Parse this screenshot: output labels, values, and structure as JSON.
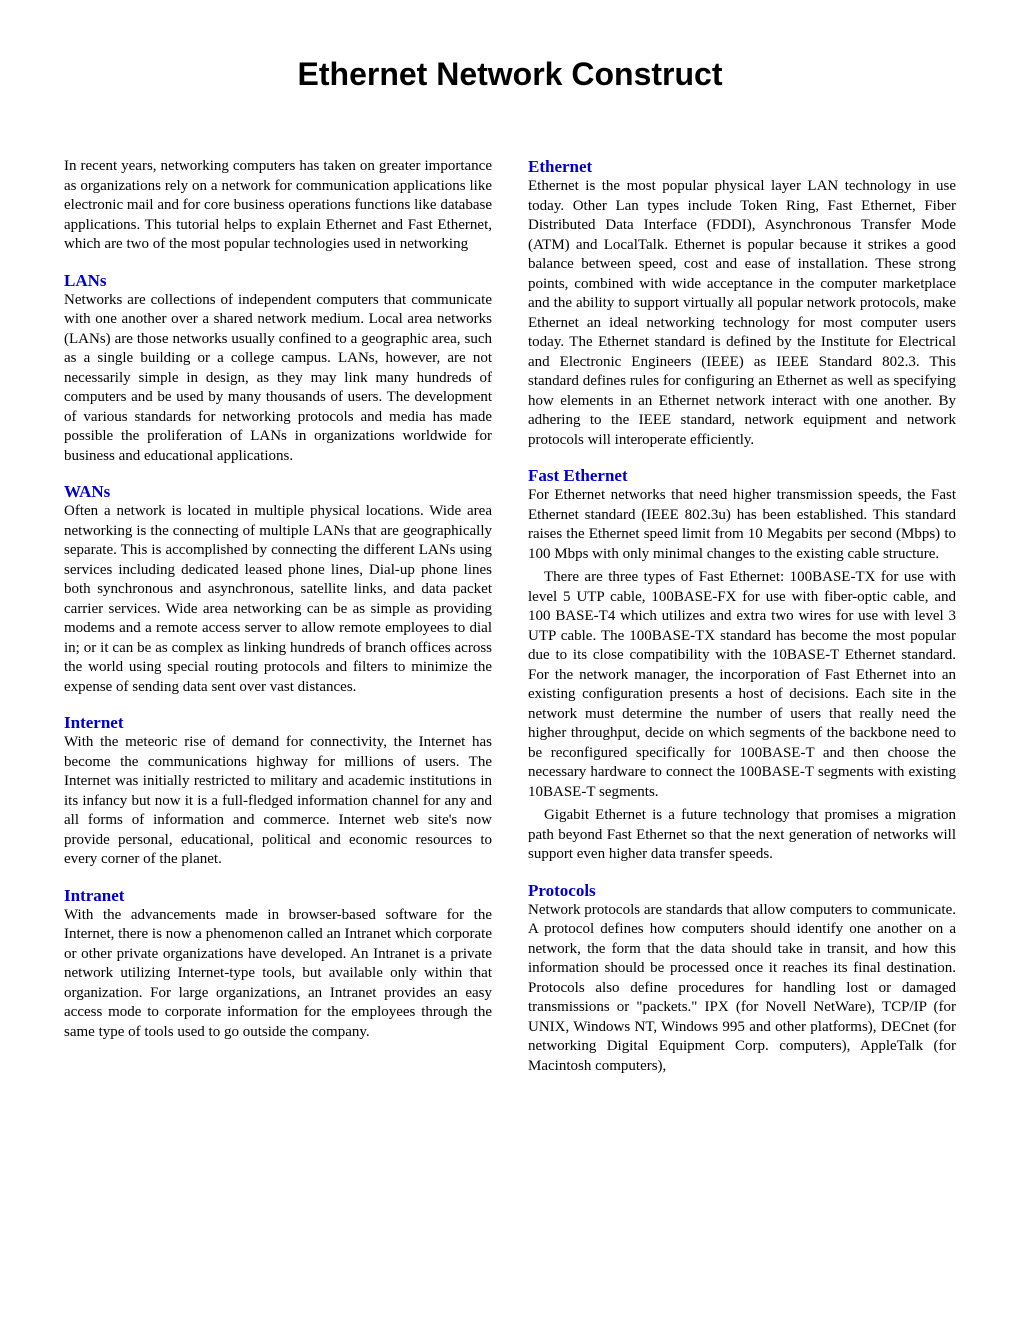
{
  "title": "Ethernet Network Construct",
  "left": {
    "intro": "In recent years, networking computers has taken on greater importance as organizations rely on a network for communication applications like electronic mail and for core business operations functions like database applications. This tutorial helps to explain Ethernet and Fast Ethernet, which are two of the most popular technologies used in networking",
    "sections": [
      {
        "heading": "LANs",
        "body": "Networks are collections of independent computers that communicate with one another over a shared network medium.  Local area networks (LANs) are those networks usually confined to a geographic area, such as a single building or a college campus.  LANs, however, are not necessarily simple in design, as they may link many hundreds of computers and be used by many thousands of users.  The development of various standards for networking protocols and media has made possible the proliferation of LANs in organizations worldwide for business and educational applications."
      },
      {
        "heading": "WANs",
        "body": "Often a network is located in multiple physical locations. Wide area networking is the connecting of multiple LANs that are geographically separate.  This is accomplished by connecting the different LANs using services including dedicated leased phone lines, Dial-up phone lines both synchronous and asynchronous, satellite links, and data packet carrier services.  Wide area networking can be as simple as providing modems and a remote access server to allow remote employees to dial in; or it can be as complex as linking hundreds of branch offices across the world using special routing protocols and filters to minimize the expense of sending data sent over vast distances."
      },
      {
        "heading": "Internet",
        "body": "With the meteoric rise of demand for connectivity, the Internet has become the communications highway for millions of users.  The Internet was initially restricted to military and academic institutions in its infancy but now it is a full-fledged information channel for any and all forms of information and commerce.  Internet web site's now provide personal, educational, political and economic resources to every corner of the planet."
      },
      {
        "heading": "Intranet",
        "body": "With the advancements made in browser-based software for the Internet, there is now a phenomenon called an Intranet which corporate or other private organizations have developed.  An Intranet is a private network utilizing Internet-type tools, but available only within that organization.  For large organizations, an Intranet provides an easy access mode to corporate information for the employees through the same type of tools used to go outside the company."
      }
    ]
  },
  "right": {
    "sections": [
      {
        "heading": "Ethernet",
        "body": "Ethernet is the most popular physical layer LAN technology in use today.  Other Lan types include Token Ring, Fast Ethernet, Fiber Distributed Data Interface (FDDI), Asynchronous Transfer Mode (ATM) and LocalTalk. Ethernet is popular because it strikes a good balance between speed, cost and ease of installation.  These strong points, combined with wide acceptance in the computer marketplace and the ability to support virtually all popular network protocols, make Ethernet an ideal networking technology for most computer users today.  The Ethernet standard is defined by the Institute for Electrical and Electronic Engineers (IEEE) as IEEE Standard 802.3.  This standard defines rules for configuring an Ethernet as well as specifying how elements in an Ethernet network interact with one another.  By adhering to the IEEE standard, network equipment and network protocols will interoperate efficiently."
      },
      {
        "heading": "Fast Ethernet",
        "body": "For Ethernet networks that need higher transmission speeds, the Fast Ethernet standard (IEEE 802.3u) has been established.  This standard raises the Ethernet speed limit from 10 Megabits per second (Mbps) to 100 Mbps with only minimal changes to the existing cable structure.",
        "body2": "There are three types of Fast Ethernet: 100BASE-TX for use with level 5 UTP cable, 100BASE-FX for use with fiber-optic cable, and 100 BASE-T4 which utilizes and extra two wires for use with level 3 UTP cable.  The 100BASE-TX standard has become the most popular due to its close compatibility with the 10BASE-T Ethernet standard.  For the network manager, the incorporation of Fast Ethernet into an existing configuration presents a host of decisions.  Each site in the network must determine the number of users that really need the higher throughput, decide on which segments of the backbone need to be reconfigured specifically for 100BASE-T and then choose the necessary hardware to connect the 100BASE-T segments with existing 10BASE-T segments.",
        "body3": "Gigabit Ethernet is a future technology that promises a migration path beyond Fast Ethernet so that the next generation of networks will support even higher data transfer speeds."
      },
      {
        "heading": "Protocols",
        "body": "Network protocols are standards that allow computers to communicate.  A protocol defines how computers should identify one another on a network, the form that the data should take in transit, and how this information should be processed once it reaches its final destination.  Protocols also define procedures for handling lost or damaged transmissions or \"packets.\"  IPX (for Novell NetWare), TCP/IP (for UNIX, Windows NT, Windows 995 and other platforms), DECnet (for networking Digital Equipment Corp. computers), AppleTalk (for Macintosh computers),"
      }
    ]
  }
}
